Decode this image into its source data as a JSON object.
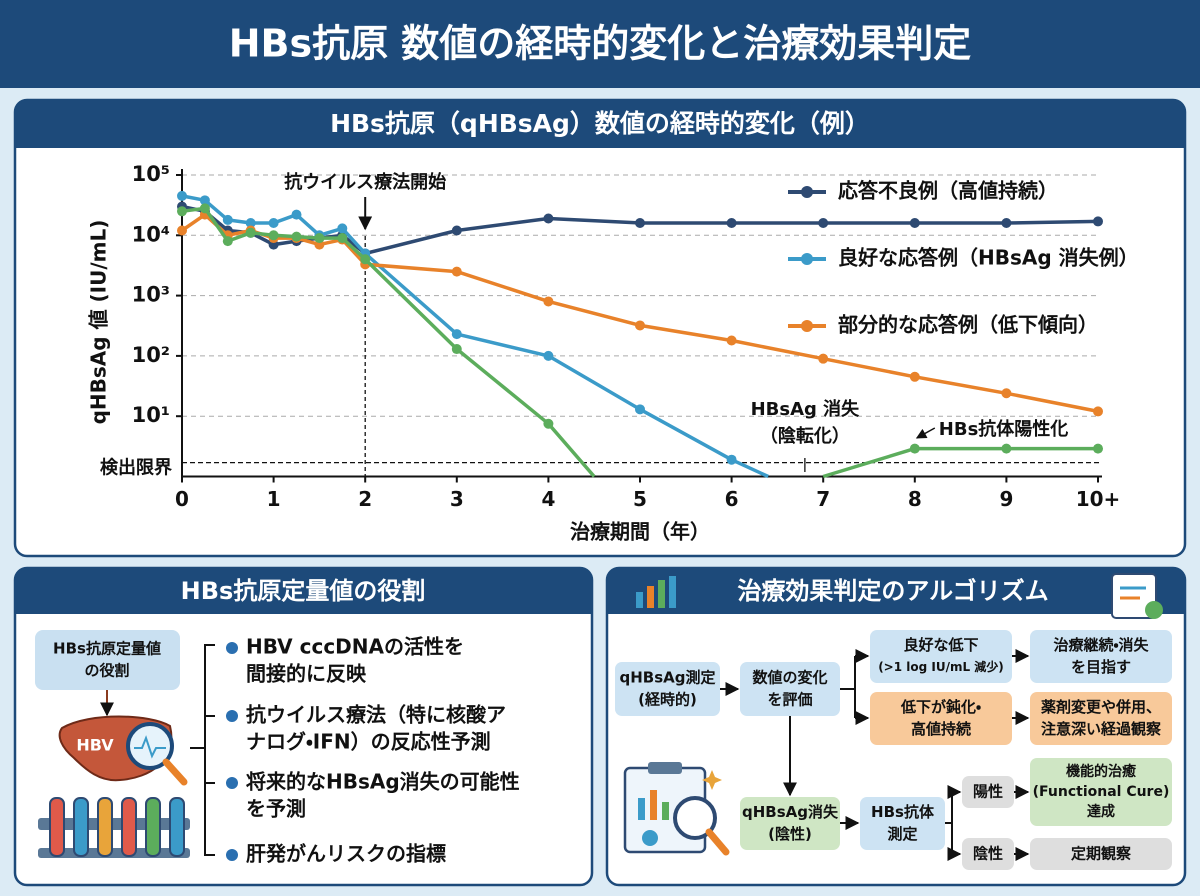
{
  "header": {
    "title": "HBs抗原 数値の経時的変化と治療効果判定"
  },
  "chart_data": {
    "type": "line",
    "title": "HBs抗原（qHBsAg）数値の経時的変化（例）",
    "x_label": "治療期間（年）",
    "y_label": "qHBsAg 値 (IU/mL)",
    "xlim": [
      0,
      10
    ],
    "xticks": [
      0,
      1,
      2,
      3,
      4,
      5,
      6,
      7,
      8,
      9,
      {
        "value": 10,
        "label": "10+"
      }
    ],
    "ylim": [
      1,
      100000
    ],
    "y_scale": "log",
    "yticks": [
      {
        "value": 10,
        "label": "10¹"
      },
      {
        "value": 100,
        "label": "10²"
      },
      {
        "value": 1000,
        "label": "10³"
      },
      {
        "value": 10000,
        "label": "10⁴"
      },
      {
        "value": 100000,
        "label": "10⁵"
      }
    ],
    "grid": true,
    "legend": "upper right",
    "detection_limit": {
      "value": 1.7,
      "label": "検出限界"
    },
    "series": [
      {
        "name": "応答不良例（高値持続）",
        "color": "#2e4a72",
        "x": [
          0,
          0.25,
          0.5,
          0.75,
          1,
          1.25,
          1.5,
          1.75,
          2,
          3,
          4,
          5,
          6,
          7,
          8,
          9,
          10
        ],
        "values": [
          30000,
          25000,
          12000,
          11000,
          7000,
          8000,
          9000,
          10000,
          5000,
          12000,
          19000,
          16000,
          16000,
          16000,
          16000,
          16000,
          17000
        ]
      },
      {
        "name": "良好な応答例（HBsAg 消失例）",
        "color": "#3b9bc9",
        "x": [
          0,
          0.25,
          0.5,
          0.75,
          1,
          1.25,
          1.5,
          1.75,
          2,
          3,
          4,
          5,
          6,
          6.4
        ],
        "values": [
          45000,
          38000,
          18000,
          16000,
          16000,
          22000,
          10000,
          13000,
          5000,
          230,
          100,
          13,
          1.9,
          1
        ]
      },
      {
        "name": "部分的な応答例（低下傾向）",
        "color": "#e8822a",
        "x": [
          0,
          0.25,
          0.5,
          0.75,
          1,
          1.25,
          1.5,
          1.75,
          2,
          3,
          4,
          5,
          6,
          7,
          8,
          9,
          10
        ],
        "values": [
          12000,
          22000,
          10000,
          12000,
          9000,
          9000,
          7000,
          8500,
          3300,
          2500,
          800,
          320,
          180,
          90,
          45,
          24,
          12
        ]
      },
      {
        "color": "#5cad5c",
        "x": [
          0,
          0.25,
          0.5,
          0.75,
          1,
          1.25,
          1.5,
          1.75,
          2,
          3,
          4,
          4.5
        ],
        "values": [
          25000,
          28000,
          8000,
          11000,
          10000,
          9500,
          9000,
          9000,
          4000,
          130,
          7.5,
          1
        ]
      },
      {
        "color": "#5cad5c",
        "x": [
          7,
          8,
          9,
          10
        ],
        "values": [
          1,
          2.9,
          2.9,
          2.9
        ]
      }
    ],
    "annotations": [
      {
        "text": [
          "抗ウイルス療法開始"
        ],
        "x": 2
      },
      {
        "text": [
          "HBsAg 消失",
          "（陰転化）"
        ],
        "x": 6.8
      },
      {
        "text": [
          "HBs抗体陽性化"
        ],
        "x": 8
      }
    ]
  },
  "role_panel": {
    "title": "HBs抗原定量値の役割",
    "label": [
      "HBs抗原定量値",
      "の役割"
    ],
    "icon_text": "HBV",
    "items": [
      [
        "HBV cccDNAの活性を",
        "間接的に反映"
      ],
      [
        "抗ウイルス療法（特に核酸ア",
        "ナログ・IFN）の反応性予測"
      ],
      [
        "将来的なHBsAg消失の可能性",
        "を予測"
      ],
      [
        "肝発がんリスクの指標"
      ]
    ]
  },
  "algorithm": {
    "title": "治療効果判定のアルゴリズム",
    "nodes": [
      {
        "label": [
          "qHBsAg測定",
          "(経時的)"
        ]
      },
      {
        "label": [
          "数値の変化",
          "を評価"
        ]
      },
      {
        "label": [
          "良好な低下",
          "(>1 log IU/mL 減少)"
        ]
      },
      {
        "label": [
          "治療継続・消失",
          "を目指す"
        ]
      },
      {
        "label": [
          "低下が鈍化・",
          "高値持続"
        ]
      },
      {
        "label": [
          "薬剤変更や併用、",
          "注意深い経過観察"
        ]
      },
      {
        "label": [
          "qHBsAg消失",
          "(陰性)"
        ]
      },
      {
        "label": [
          "HBs抗体",
          "測定"
        ]
      },
      {
        "label": [
          "陽性"
        ]
      },
      {
        "label": [
          "機能的治癒",
          "(Functional Cure)",
          "達成"
        ]
      },
      {
        "label": [
          "陰性"
        ]
      },
      {
        "label": [
          "定期観察"
        ]
      }
    ]
  }
}
